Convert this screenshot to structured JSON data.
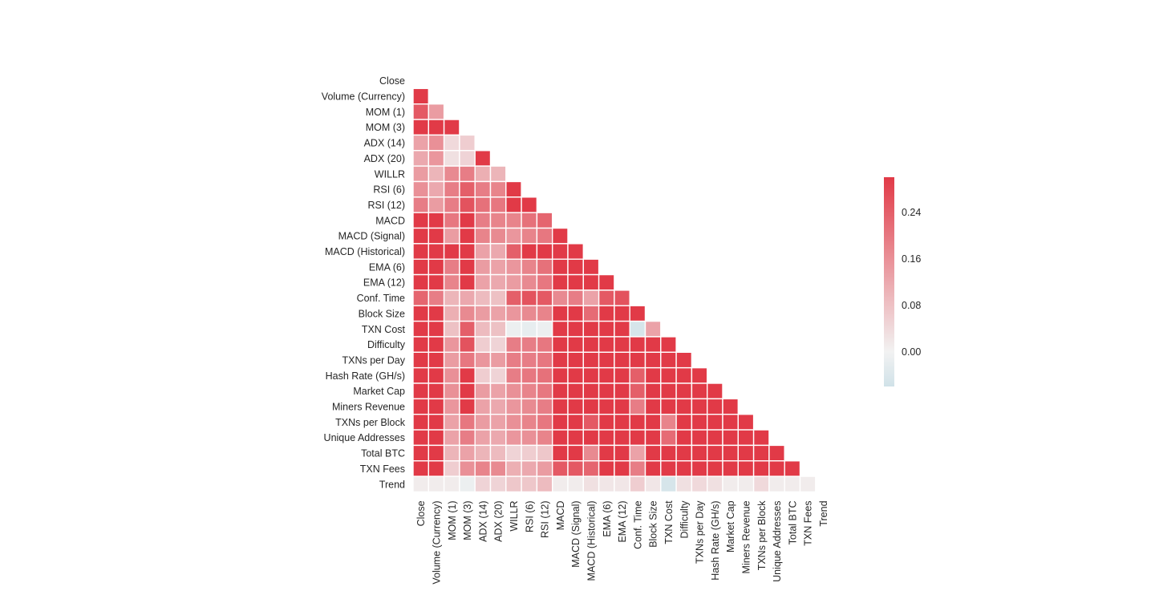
{
  "chart_data": {
    "type": "heatmap",
    "title": "",
    "xlabel": "",
    "ylabel": "",
    "variables": [
      "Close",
      "Volume (Currency)",
      "MOM (1)",
      "MOM (3)",
      "ADX (14)",
      "ADX (20)",
      "WILLR",
      "RSI (6)",
      "RSI (12)",
      "MACD",
      "MACD (Signal)",
      "MACD (Historical)",
      "EMA (6)",
      "EMA (12)",
      "Conf. Time",
      "Block Size",
      "TXN Cost",
      "Difficulty",
      "TXNs per Day",
      "Hash Rate (GH/s)",
      "Market Cap",
      "Miners Revenue",
      "TXNs per Block",
      "Unique Addresses",
      "Total BTC",
      "TXN Fees",
      "Trend"
    ],
    "mask": "upper-triangle-including-diagonal",
    "matrix_lower_triangle": [
      [],
      [
        0.3
      ],
      [
        0.25,
        0.14
      ],
      [
        0.3,
        0.3,
        0.3
      ],
      [
        0.13,
        0.16,
        0.04,
        0.06
      ],
      [
        0.12,
        0.15,
        0.03,
        0.05,
        0.3
      ],
      [
        0.14,
        0.1,
        0.17,
        0.19,
        0.11,
        0.1
      ],
      [
        0.16,
        0.12,
        0.19,
        0.24,
        0.19,
        0.18,
        0.3
      ],
      [
        0.19,
        0.14,
        0.19,
        0.26,
        0.21,
        0.2,
        0.3,
        0.3
      ],
      [
        0.3,
        0.3,
        0.2,
        0.3,
        0.19,
        0.18,
        0.18,
        0.21,
        0.23
      ],
      [
        0.3,
        0.3,
        0.14,
        0.3,
        0.18,
        0.17,
        0.15,
        0.18,
        0.2,
        0.3
      ],
      [
        0.3,
        0.3,
        0.3,
        0.3,
        0.13,
        0.12,
        0.24,
        0.3,
        0.3,
        0.3,
        0.3
      ],
      [
        0.3,
        0.3,
        0.19,
        0.3,
        0.14,
        0.13,
        0.15,
        0.18,
        0.21,
        0.3,
        0.3,
        0.3
      ],
      [
        0.3,
        0.3,
        0.18,
        0.3,
        0.13,
        0.12,
        0.14,
        0.17,
        0.2,
        0.3,
        0.3,
        0.3,
        0.3
      ],
      [
        0.23,
        0.19,
        0.1,
        0.12,
        0.09,
        0.08,
        0.24,
        0.26,
        0.25,
        0.17,
        0.19,
        0.13,
        0.25,
        0.26
      ],
      [
        0.3,
        0.3,
        0.11,
        0.17,
        0.14,
        0.13,
        0.15,
        0.17,
        0.18,
        0.3,
        0.3,
        0.22,
        0.3,
        0.3,
        0.3
      ],
      [
        0.3,
        0.3,
        0.08,
        0.24,
        0.09,
        0.08,
        -0.01,
        -0.02,
        -0.01,
        0.3,
        0.3,
        0.3,
        0.3,
        0.3,
        -0.05,
        0.13
      ],
      [
        0.3,
        0.3,
        0.15,
        0.26,
        0.06,
        0.05,
        0.19,
        0.19,
        0.2,
        0.3,
        0.3,
        0.3,
        0.3,
        0.3,
        0.3,
        0.3,
        0.3
      ],
      [
        0.3,
        0.3,
        0.14,
        0.2,
        0.15,
        0.14,
        0.19,
        0.19,
        0.2,
        0.3,
        0.3,
        0.3,
        0.3,
        0.3,
        0.3,
        0.3,
        0.3,
        0.3
      ],
      [
        0.3,
        0.3,
        0.16,
        0.3,
        0.06,
        0.05,
        0.19,
        0.2,
        0.21,
        0.3,
        0.3,
        0.3,
        0.3,
        0.3,
        0.24,
        0.3,
        0.3,
        0.3,
        0.3
      ],
      [
        0.3,
        0.3,
        0.16,
        0.3,
        0.14,
        0.13,
        0.16,
        0.18,
        0.2,
        0.3,
        0.3,
        0.3,
        0.3,
        0.3,
        0.24,
        0.3,
        0.3,
        0.3,
        0.3,
        0.3
      ],
      [
        0.3,
        0.3,
        0.15,
        0.3,
        0.13,
        0.12,
        0.15,
        0.17,
        0.19,
        0.3,
        0.3,
        0.3,
        0.3,
        0.3,
        0.19,
        0.3,
        0.3,
        0.3,
        0.3,
        0.3,
        0.3
      ],
      [
        0.3,
        0.3,
        0.13,
        0.2,
        0.14,
        0.13,
        0.16,
        0.18,
        0.2,
        0.3,
        0.3,
        0.25,
        0.3,
        0.3,
        0.3,
        0.3,
        0.18,
        0.3,
        0.3,
        0.3,
        0.3,
        0.3
      ],
      [
        0.3,
        0.3,
        0.13,
        0.19,
        0.13,
        0.12,
        0.15,
        0.16,
        0.18,
        0.3,
        0.3,
        0.3,
        0.3,
        0.3,
        0.3,
        0.3,
        0.22,
        0.3,
        0.3,
        0.3,
        0.3,
        0.3,
        0.3
      ],
      [
        0.3,
        0.3,
        0.1,
        0.13,
        0.1,
        0.09,
        0.05,
        0.06,
        0.07,
        0.3,
        0.3,
        0.17,
        0.3,
        0.3,
        0.13,
        0.3,
        0.3,
        0.3,
        0.3,
        0.3,
        0.3,
        0.3,
        0.3,
        0.3
      ],
      [
        0.3,
        0.3,
        0.06,
        0.16,
        0.18,
        0.17,
        0.11,
        0.12,
        0.14,
        0.25,
        0.25,
        0.23,
        0.3,
        0.3,
        0.19,
        0.3,
        0.3,
        0.3,
        0.3,
        0.3,
        0.3,
        0.3,
        0.3,
        0.3,
        0.3
      ],
      [
        0.01,
        0.01,
        0.01,
        -0.01,
        0.05,
        0.05,
        0.07,
        0.07,
        0.09,
        0.01,
        0.01,
        0.03,
        0.02,
        0.02,
        0.06,
        0.02,
        -0.05,
        0.03,
        0.04,
        0.03,
        0.01,
        0.01,
        0.04,
        0.01,
        0.01,
        0.01
      ]
    ],
    "colorbar": {
      "min": -0.06,
      "max": 0.3,
      "ticks": [
        "0.24",
        "0.16",
        "0.08",
        "0.00"
      ],
      "tick_values": [
        0.24,
        0.16,
        0.08,
        0.0
      ],
      "position": "right"
    },
    "colors": {
      "negative": "#d0e2e8",
      "center": "#f2f2f2",
      "positive": "#e13a47",
      "cell_border": "#ffffff",
      "text": "#262626"
    },
    "grid": false
  }
}
